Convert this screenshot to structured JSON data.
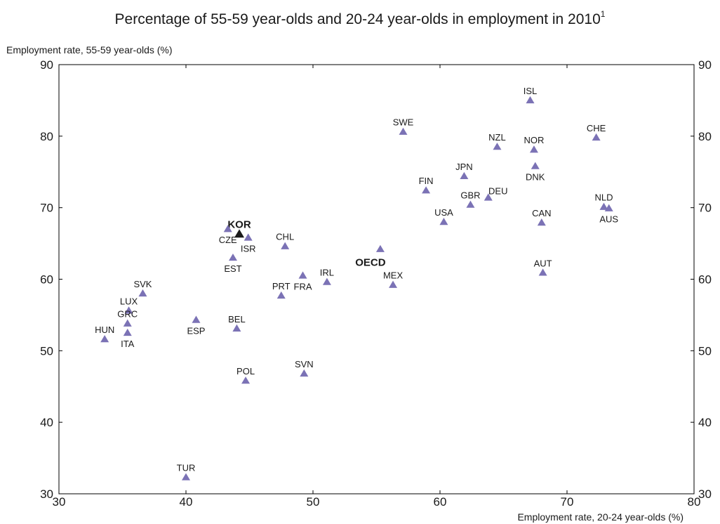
{
  "chart_data": {
    "type": "scatter",
    "title": "Percentage of 55-59 year-olds and 20-24 year-olds in employment in 2010",
    "title_footnote": "1",
    "ylabel": "Employment rate, 55-59 year-olds (%)",
    "xlabel": "Employment rate, 20-24 year-olds (%)",
    "xlim": [
      30,
      80
    ],
    "ylim": [
      30,
      90
    ],
    "xticks": [
      30,
      40,
      50,
      60,
      70,
      80
    ],
    "yticks": [
      30,
      40,
      50,
      60,
      70,
      80,
      90
    ],
    "y_axis_right_mirror": true,
    "grid": false,
    "marker": "triangle",
    "point_color": "#7b72b5",
    "highlight_color": "#1a1a1a",
    "points": [
      {
        "label": "ISL",
        "x": 67.1,
        "y": 85.0,
        "label_pos": "above"
      },
      {
        "label": "CHE",
        "x": 72.3,
        "y": 79.8,
        "label_pos": "above"
      },
      {
        "label": "SWE",
        "x": 57.1,
        "y": 80.6,
        "label_pos": "above"
      },
      {
        "label": "NZL",
        "x": 64.5,
        "y": 78.5,
        "label_pos": "above"
      },
      {
        "label": "NOR",
        "x": 67.4,
        "y": 78.1,
        "label_pos": "above"
      },
      {
        "label": "DNK",
        "x": 67.5,
        "y": 75.8,
        "label_pos": "below"
      },
      {
        "label": "JPN",
        "x": 61.9,
        "y": 74.4,
        "label_pos": "above"
      },
      {
        "label": "FIN",
        "x": 58.9,
        "y": 72.4,
        "label_pos": "above"
      },
      {
        "label": "DEU",
        "x": 63.8,
        "y": 71.4,
        "label_pos": "above-right"
      },
      {
        "label": "GBR",
        "x": 62.4,
        "y": 70.4,
        "label_pos": "above"
      },
      {
        "label": "NLD",
        "x": 72.9,
        "y": 70.1,
        "label_pos": "above"
      },
      {
        "label": "AUS",
        "x": 73.3,
        "y": 69.9,
        "label_pos": "below"
      },
      {
        "label": "USA",
        "x": 60.3,
        "y": 68.0,
        "label_pos": "above"
      },
      {
        "label": "CAN",
        "x": 68.0,
        "y": 67.9,
        "label_pos": "above"
      },
      {
        "label": "KOR",
        "x": 44.2,
        "y": 66.3,
        "label_pos": "above",
        "highlight": true
      },
      {
        "label": "CZE",
        "x": 43.3,
        "y": 67.0,
        "label_pos": "below"
      },
      {
        "label": "ISR",
        "x": 44.9,
        "y": 65.8,
        "label_pos": "below"
      },
      {
        "label": "CHL",
        "x": 47.8,
        "y": 64.6,
        "label_pos": "above"
      },
      {
        "label": "OECD",
        "x": 55.3,
        "y": 64.2,
        "label_pos": "below-left",
        "bold": true
      },
      {
        "label": "EST",
        "x": 43.7,
        "y": 63.0,
        "label_pos": "below"
      },
      {
        "label": "AUT",
        "x": 68.1,
        "y": 60.9,
        "label_pos": "above"
      },
      {
        "label": "IRL",
        "x": 51.1,
        "y": 59.6,
        "label_pos": "above"
      },
      {
        "label": "FRA",
        "x": 49.2,
        "y": 60.5,
        "label_pos": "below"
      },
      {
        "label": "MEX",
        "x": 56.3,
        "y": 59.2,
        "label_pos": "above"
      },
      {
        "label": "PRT",
        "x": 47.5,
        "y": 57.7,
        "label_pos": "above"
      },
      {
        "label": "SVK",
        "x": 36.6,
        "y": 58.0,
        "label_pos": "above"
      },
      {
        "label": "LUX",
        "x": 35.5,
        "y": 55.6,
        "label_pos": "above"
      },
      {
        "label": "ESP",
        "x": 40.8,
        "y": 54.3,
        "label_pos": "below"
      },
      {
        "label": "GRC",
        "x": 35.4,
        "y": 53.8,
        "label_pos": "above"
      },
      {
        "label": "BEL",
        "x": 44.0,
        "y": 53.1,
        "label_pos": "above"
      },
      {
        "label": "ITA",
        "x": 35.4,
        "y": 52.5,
        "label_pos": "below"
      },
      {
        "label": "HUN",
        "x": 33.6,
        "y": 51.6,
        "label_pos": "above"
      },
      {
        "label": "SVN",
        "x": 49.3,
        "y": 46.8,
        "label_pos": "above"
      },
      {
        "label": "POL",
        "x": 44.7,
        "y": 45.8,
        "label_pos": "above"
      },
      {
        "label": "TUR",
        "x": 40.0,
        "y": 32.3,
        "label_pos": "above"
      }
    ]
  }
}
